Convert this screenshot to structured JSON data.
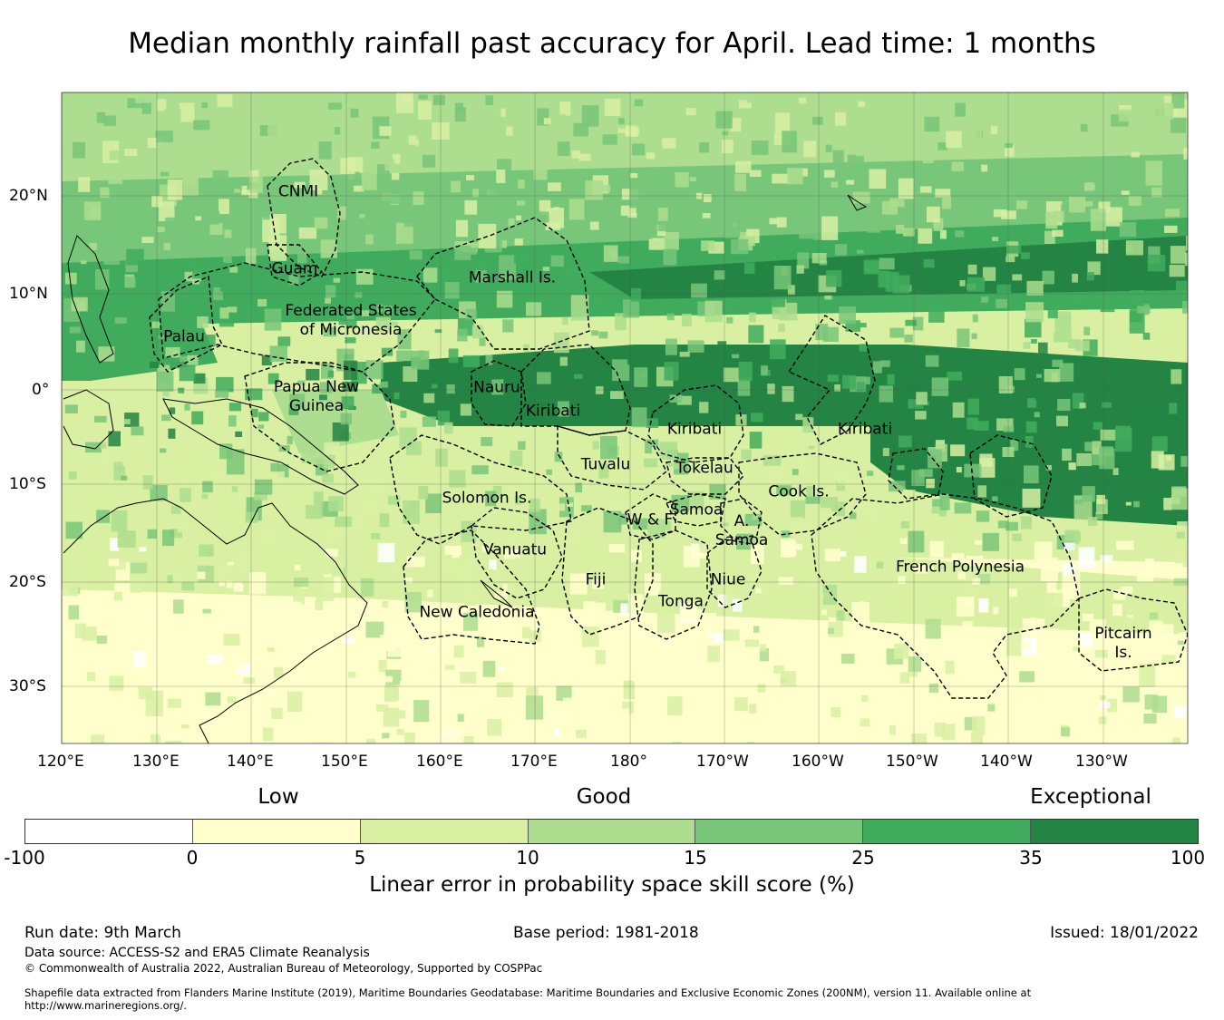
{
  "title": "Median monthly rainfall past accuracy for April. Lead time: 1 months",
  "map": {
    "lon_labels": [
      "120°E",
      "130°E",
      "140°E",
      "150°E",
      "160°E",
      "170°E",
      "180°",
      "170°W",
      "160°W",
      "150°W",
      "140°W",
      "130°W"
    ],
    "lat_labels": [
      "20°N",
      "10°N",
      "0°",
      "10°S",
      "20°S",
      "30°S"
    ],
    "regions": [
      {
        "name": "cnmi",
        "label": "CNMI"
      },
      {
        "name": "guam",
        "label": "Guam"
      },
      {
        "name": "marshall",
        "label": "Marshall Is."
      },
      {
        "name": "fsm",
        "label": "Federated States\nof Micronesia"
      },
      {
        "name": "palau",
        "label": "Palau"
      },
      {
        "name": "png",
        "label": "Papua New\nGuinea"
      },
      {
        "name": "nauru",
        "label": "Nauru"
      },
      {
        "name": "kiribati-w",
        "label": "Kiribati"
      },
      {
        "name": "kiribati-c",
        "label": "Kiribati"
      },
      {
        "name": "kiribati-e",
        "label": "Kiribati"
      },
      {
        "name": "tuvalu",
        "label": "Tuvalu"
      },
      {
        "name": "tokelau",
        "label": "Tokelau"
      },
      {
        "name": "solomon",
        "label": "Solomon Is."
      },
      {
        "name": "cook",
        "label": "Cook Is."
      },
      {
        "name": "samoa",
        "label": "Samoa"
      },
      {
        "name": "wf",
        "label": "W & F"
      },
      {
        "name": "asamoa",
        "label": "A.\nSamoa"
      },
      {
        "name": "vanuatu",
        "label": "Vanuatu"
      },
      {
        "name": "fiji",
        "label": "Fiji"
      },
      {
        "name": "niue",
        "label": "Niue"
      },
      {
        "name": "tonga",
        "label": "Tonga"
      },
      {
        "name": "french-polynesia",
        "label": "French Polynesia"
      },
      {
        "name": "new-caledonia",
        "label": "New Caledonia"
      },
      {
        "name": "pitcairn",
        "label": "Pitcairn\nIs."
      }
    ]
  },
  "colorbar": {
    "category_words": [
      "Low",
      "Good",
      "Exceptional"
    ],
    "ticks": [
      "-100",
      "0",
      "5",
      "10",
      "15",
      "25",
      "35",
      "100"
    ],
    "colors": [
      "#ffffff",
      "#ffffcc",
      "#d9f0a3",
      "#addd8e",
      "#78c679",
      "#41ab5d",
      "#238443"
    ],
    "label": "Linear error in probability space skill score (%)"
  },
  "footer": {
    "run_date": "Run date: 9th March",
    "base_period": "Base period: 1981-2018",
    "issued": "Issued: 18/01/2022",
    "data_source": "Data source: ACCESS-S2 and ERA5 Climate Reanalysis",
    "copyright": "© Commonwealth of Australia 2022, Australian Bureau of Meteorology, Supported by COSPPac",
    "shapefile": "Shapefile data extracted from Flanders Marine Institute (2019), Maritime Boundaries Geodatabase: Maritime Boundaries and Exclusive Economic Zones (200NM), version 11. Available online at http://www.marineregions.org/."
  }
}
